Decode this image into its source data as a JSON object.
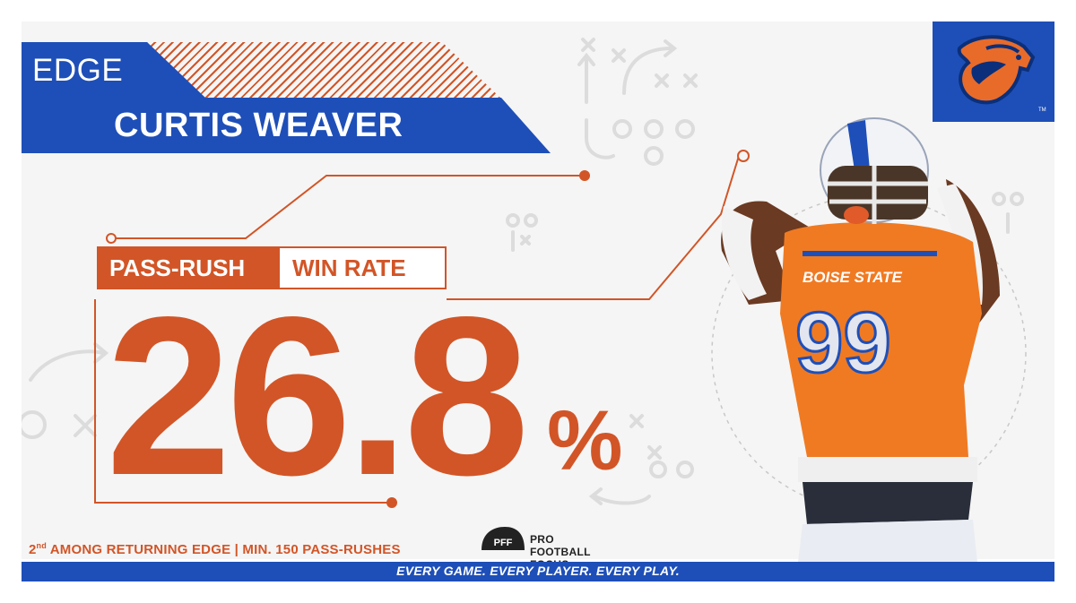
{
  "header": {
    "position": "EDGE",
    "player_name": "CURTIS WEAVER"
  },
  "stat": {
    "label_left": "PASS-RUSH",
    "label_right": "WIN RATE",
    "value": "26.8",
    "unit": "%"
  },
  "footnote": {
    "rank": "2",
    "rank_suffix": "nd",
    "text": " AMONG RETURNING EDGE | MIN. 150 PASS-RUSHES"
  },
  "brand": {
    "pff_mark": "PFF",
    "name": "PRO FOOTBALL FOCUS",
    "tagline": "EVERY GAME. EVERY PLAYER. EVERY PLAY."
  },
  "jersey": {
    "team": "BOISE STATE",
    "number": "99"
  },
  "colors": {
    "blue": "#1e4fb8",
    "orange": "#d25527",
    "background": "#f5f5f5"
  }
}
